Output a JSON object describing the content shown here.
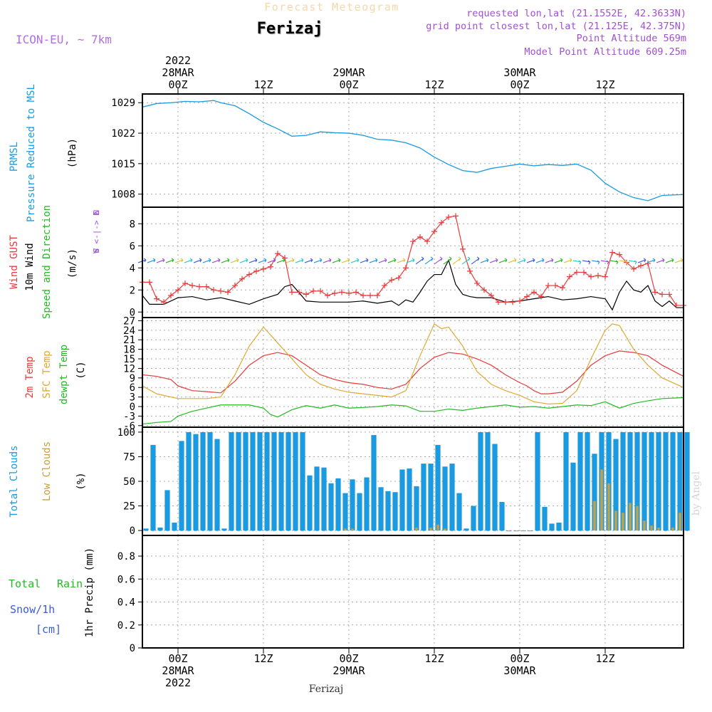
{
  "header": {
    "suptitle": "Forecast Meteogram",
    "location": "Ferizaj",
    "model": "ICON-EU, ~ 7km",
    "requested": "requested lon,lat (21.1552E, 42.3633N)",
    "gridpoint": "grid point closest lon,lat (21.125E, 42.375N)",
    "point_alt": "Point Altitude 569m",
    "model_alt": "Model Point Altitude 609.25m",
    "footer_location": "Ferizaj",
    "watermark": "by Angel"
  },
  "time_axis": {
    "top_labels": [
      {
        "t": 0,
        "lines": [
          "2022",
          "28MAR",
          "00Z"
        ]
      },
      {
        "t": 12,
        "lines": [
          "12Z"
        ]
      },
      {
        "t": 24,
        "lines": [
          "29MAR",
          "00Z"
        ]
      },
      {
        "t": 36,
        "lines": [
          "12Z"
        ]
      },
      {
        "t": 48,
        "lines": [
          "30MAR",
          "00Z"
        ]
      },
      {
        "t": 60,
        "lines": [
          "12Z"
        ]
      }
    ],
    "bottom_labels": [
      {
        "t": 0,
        "lines": [
          "00Z",
          "28MAR",
          "2022"
        ]
      },
      {
        "t": 12,
        "lines": [
          "12Z"
        ]
      },
      {
        "t": 24,
        "lines": [
          "00Z",
          "29MAR"
        ]
      },
      {
        "t": 36,
        "lines": [
          "12Z"
        ]
      },
      {
        "t": 48,
        "lines": [
          "00Z",
          "30MAR"
        ]
      },
      {
        "t": 60,
        "lines": [
          "12Z"
        ]
      }
    ],
    "xlim_hours": [
      -5,
      71
    ]
  },
  "panel_labels": {
    "pressure": [
      "PRMSL",
      "Pressure Reduced to MSL",
      "(hPa)"
    ],
    "wind": [
      "Wind GUST",
      "10m Wind",
      "Speed and Direction",
      "(m/s)"
    ],
    "compass": [
      "N",
      "W <-|-> E",
      "S"
    ],
    "temp": [
      "2m Temp",
      "SFC Temp",
      "dewpt Temp",
      "(C)"
    ],
    "clouds": [
      "Total Clouds",
      "Low Clouds",
      "(%)"
    ],
    "precip_left": [
      "Total",
      "Rain",
      "Snow/1h",
      "[cm]"
    ],
    "precip_axis": "1hr Precip (mm)"
  },
  "colors": {
    "pressure": "#1a9ae0",
    "gust": "#e83a3a",
    "wind": "#000000",
    "t2m": "#e83a3a",
    "sfc": "#e0a830",
    "dewpt": "#22bb22",
    "total_clouds": "#1a9ae0",
    "low_clouds": "#c8a040",
    "purple": "#9b4fd6",
    "green": "#22bb22",
    "blue": "#3a5ae0",
    "black": "#000000"
  },
  "chart_data": [
    {
      "type": "line",
      "name": "pressure",
      "yticks": [
        1008,
        1015,
        1022,
        1029
      ],
      "ylim": [
        1005,
        1031
      ],
      "series": [
        {
          "name": "PRMSL",
          "x": [
            -5,
            -3,
            -1,
            1,
            3,
            5,
            6,
            8,
            10,
            12,
            14,
            16,
            18,
            20,
            22,
            24,
            26,
            28,
            30,
            32,
            34,
            36,
            38,
            40,
            42,
            44,
            46,
            48,
            50,
            52,
            54,
            56,
            58,
            60,
            62,
            64,
            66,
            68,
            71
          ],
          "y": [
            1028.0,
            1028.8,
            1029.0,
            1029.3,
            1029.2,
            1029.5,
            1029.0,
            1028.3,
            1026.5,
            1024.5,
            1023.0,
            1021.3,
            1021.5,
            1022.3,
            1022.1,
            1022.0,
            1021.5,
            1020.6,
            1020.4,
            1019.8,
            1018.6,
            1016.5,
            1014.8,
            1013.4,
            1013.0,
            1013.9,
            1014.4,
            1014.9,
            1014.5,
            1014.8,
            1014.6,
            1014.9,
            1013.5,
            1010.5,
            1008.5,
            1007.2,
            1006.5,
            1007.7,
            1007.9
          ]
        }
      ]
    },
    {
      "type": "line",
      "name": "wind",
      "yticks": [
        0,
        2,
        4,
        6,
        8
      ],
      "ylim": [
        -0.5,
        9.5
      ],
      "series": [
        {
          "name": "Wind GUST",
          "x": [
            -5,
            -4,
            -3,
            -2,
            -1,
            0,
            1,
            2,
            3,
            4,
            5,
            6,
            7,
            8,
            9,
            10,
            11,
            12,
            13,
            14,
            15,
            16,
            17,
            18,
            19,
            20,
            21,
            22,
            23,
            24,
            25,
            26,
            27,
            28,
            29,
            30,
            31,
            32,
            33,
            34,
            35,
            36,
            37,
            38,
            39,
            40,
            41,
            42,
            43,
            44,
            45,
            46,
            47,
            48,
            49,
            50,
            51,
            52,
            53,
            54,
            55,
            56,
            57,
            58,
            59,
            60,
            61,
            62,
            63,
            64,
            65,
            66,
            67,
            68,
            69,
            70,
            71
          ],
          "y": [
            2.7,
            2.7,
            1.2,
            0.9,
            1.5,
            2.0,
            2.6,
            2.4,
            2.3,
            2.3,
            2.0,
            1.9,
            1.8,
            2.4,
            3.0,
            3.4,
            3.7,
            3.9,
            4.1,
            5.3,
            4.9,
            1.8,
            1.8,
            1.6,
            1.9,
            1.9,
            1.5,
            1.7,
            1.8,
            1.7,
            1.8,
            1.5,
            1.5,
            1.5,
            2.4,
            2.9,
            3.1,
            4.0,
            6.4,
            6.8,
            6.4,
            7.3,
            8.1,
            8.6,
            8.7,
            5.7,
            3.7,
            2.6,
            2.0,
            1.5,
            0.9,
            0.9,
            0.9,
            1.0,
            1.4,
            1.8,
            1.4,
            2.4,
            2.4,
            2.2,
            3.2,
            3.6,
            3.6,
            3.2,
            3.3,
            3.2,
            5.4,
            5.2,
            4.5,
            3.9,
            4.2,
            4.4,
            1.8,
            1.6,
            1.6,
            0.6,
            0.6
          ]
        },
        {
          "name": "10m Wind",
          "x": [
            -5,
            -4,
            -2,
            0,
            2,
            4,
            6,
            8,
            10,
            12,
            14,
            15,
            16,
            18,
            20,
            22,
            24,
            26,
            28,
            30,
            31,
            32,
            33,
            34,
            35,
            36,
            37,
            38,
            39,
            40,
            41,
            42,
            44,
            46,
            48,
            50,
            52,
            54,
            56,
            58,
            60,
            61,
            62,
            63,
            64,
            65,
            66,
            67,
            68,
            69,
            70,
            71
          ],
          "y": [
            1.5,
            0.7,
            0.7,
            1.3,
            1.4,
            1.1,
            1.3,
            1.0,
            0.7,
            1.2,
            1.6,
            2.3,
            2.5,
            1.0,
            0.9,
            0.9,
            0.9,
            1.0,
            0.8,
            1.0,
            0.6,
            1.1,
            0.9,
            1.8,
            2.8,
            3.4,
            3.4,
            4.7,
            2.5,
            1.6,
            1.4,
            1.3,
            1.3,
            0.9,
            1.0,
            1.2,
            1.4,
            1.1,
            1.2,
            1.4,
            1.2,
            0.2,
            1.8,
            2.8,
            2.0,
            1.8,
            2.4,
            1.0,
            0.5,
            1.0,
            0.4,
            0.4
          ]
        }
      ]
    },
    {
      "type": "line",
      "name": "temperature",
      "yticks": [
        -6,
        -3,
        0,
        3,
        6,
        9,
        12,
        15,
        18,
        21,
        24,
        27
      ],
      "ylim": [
        -6.5,
        28
      ],
      "series": [
        {
          "name": "2m Temp",
          "x": [
            -5,
            -3,
            -1,
            0,
            2,
            4,
            6,
            8,
            10,
            12,
            14,
            16,
            18,
            20,
            22,
            24,
            26,
            28,
            30,
            32,
            34,
            36,
            38,
            40,
            42,
            44,
            46,
            48,
            49,
            50,
            51,
            52,
            54,
            56,
            58,
            60,
            62,
            64,
            66,
            68,
            71
          ],
          "y": [
            10,
            9.5,
            8.5,
            6.5,
            5,
            4.7,
            4.3,
            8,
            13,
            16,
            17,
            16,
            13,
            10,
            8.5,
            7.5,
            7,
            6,
            5.5,
            7,
            12,
            15.5,
            17,
            16.5,
            15,
            13,
            10,
            7.5,
            6.5,
            5,
            4,
            4,
            4.5,
            8,
            13,
            16,
            17.5,
            17,
            16,
            13,
            9.5
          ]
        },
        {
          "name": "SFC Temp",
          "x": [
            -5,
            -3,
            -1,
            0,
            2,
            4,
            6,
            8,
            10,
            12,
            14,
            16,
            18,
            20,
            22,
            24,
            26,
            28,
            30,
            32,
            34,
            35,
            36,
            37,
            38,
            40,
            42,
            44,
            46,
            48,
            50,
            52,
            54,
            56,
            58,
            60,
            61,
            62,
            64,
            66,
            68,
            71
          ],
          "y": [
            6.5,
            4,
            3,
            2.5,
            2.5,
            2.5,
            3,
            10,
            19,
            25,
            20,
            15,
            10,
            7,
            5.5,
            4.5,
            4,
            3.5,
            3,
            5,
            16,
            21,
            26,
            24.5,
            25,
            19,
            11,
            7,
            5,
            3.5,
            1.5,
            0.8,
            1,
            5,
            15,
            24,
            26,
            25.5,
            18,
            13,
            9,
            6
          ]
        },
        {
          "name": "dewpt Temp",
          "x": [
            -5,
            -3,
            -1,
            0,
            2,
            4,
            6,
            8,
            10,
            12,
            13,
            14,
            16,
            18,
            20,
            22,
            24,
            26,
            28,
            30,
            32,
            34,
            36,
            38,
            40,
            42,
            44,
            46,
            48,
            50,
            52,
            54,
            56,
            58,
            60,
            62,
            64,
            66,
            68,
            71
          ],
          "y": [
            -5.5,
            -5,
            -4.7,
            -3,
            -1.5,
            -0.5,
            0.5,
            0.5,
            0.5,
            -0.5,
            -2.5,
            -3.3,
            -1,
            0.3,
            -0.5,
            0.5,
            -0.5,
            -0.3,
            0,
            0.5,
            0.2,
            -1.5,
            -1.5,
            -0.8,
            -1.2,
            -0.5,
            0,
            0.5,
            -0.2,
            0,
            -0.5,
            0,
            0.5,
            0.3,
            1.5,
            -0.5,
            1,
            1.8,
            2.5,
            2.8
          ]
        }
      ]
    },
    {
      "type": "bar",
      "name": "clouds",
      "yticks": [
        0,
        25,
        50,
        75,
        100
      ],
      "ylim": [
        -5,
        105
      ],
      "x_start": -5,
      "series": [
        {
          "name": "Total Clouds",
          "values": [
            2,
            87,
            3,
            41,
            8,
            91,
            100,
            98,
            100,
            100,
            93,
            2,
            100,
            100,
            100,
            100,
            100,
            100,
            100,
            100,
            100,
            100,
            100,
            56,
            65,
            64,
            48,
            53,
            38,
            52,
            38,
            54,
            97,
            44,
            40,
            39,
            62,
            63,
            45,
            68,
            68,
            87,
            65,
            68,
            38,
            2,
            25,
            100,
            100,
            88,
            29,
            0,
            0,
            0,
            0,
            100,
            24,
            7,
            8,
            100,
            69,
            100,
            100,
            78,
            100,
            100,
            93,
            100,
            100,
            100,
            100,
            100,
            100,
            100,
            100,
            100,
            100
          ]
        },
        {
          "name": "Low Clouds",
          "values": [
            0,
            0,
            0,
            0,
            0,
            0,
            0,
            0,
            0,
            0,
            0,
            0,
            0,
            0,
            0,
            0,
            0,
            0,
            0,
            0,
            0,
            0,
            0,
            0,
            0,
            0,
            0,
            0,
            2,
            2,
            0,
            0,
            0,
            0,
            0,
            0,
            0,
            0,
            3,
            0,
            3,
            6,
            2,
            0,
            0,
            0,
            0,
            0,
            0,
            0,
            0,
            0,
            0,
            0,
            0,
            0,
            0,
            0,
            0,
            0,
            0,
            0,
            0,
            30,
            62,
            48,
            20,
            18,
            28,
            25,
            10,
            5,
            3,
            0,
            3,
            18,
            0
          ]
        }
      ]
    },
    {
      "type": "bar",
      "name": "precipitation",
      "yticks": [
        0,
        0.2,
        0.4,
        0.6,
        0.8
      ],
      "ylim": [
        0,
        0.98
      ],
      "series": []
    }
  ]
}
